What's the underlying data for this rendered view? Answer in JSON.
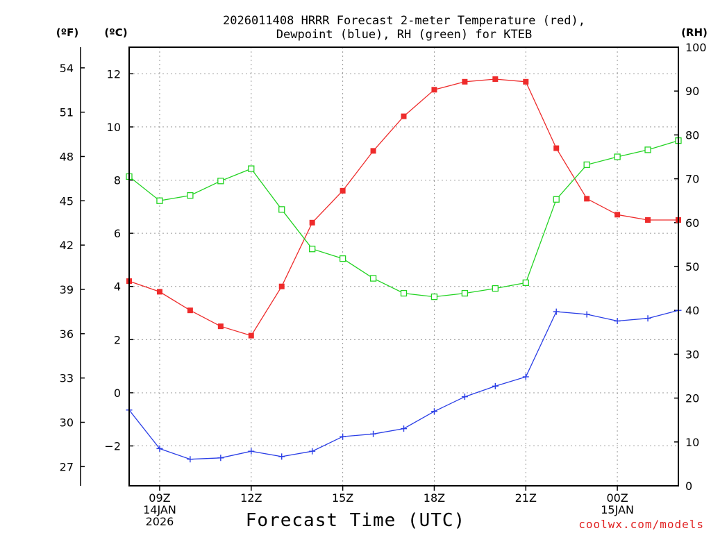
{
  "title": {
    "line1": "2026011408 HRRR Forecast 2-meter Temperature (red),",
    "line2": "Dewpoint (blue), RH (green) for KTEB"
  },
  "units": {
    "fahrenheit": "(ºF)",
    "celsius": "(ºC)",
    "rh": "(RH)"
  },
  "credit": "coolwx.com/models",
  "chart_data": {
    "type": "line",
    "title": "2026011408 HRRR Forecast 2-meter Temperature (red), Dewpoint (blue), RH (green) for KTEB",
    "xlabel": "Forecast Time (UTC)",
    "x_hours_utc": [
      8,
      9,
      10,
      11,
      12,
      13,
      14,
      15,
      16,
      17,
      18,
      19,
      20,
      21,
      22,
      23,
      24,
      25,
      26
    ],
    "x_ticks": [
      {
        "hour": 9,
        "lines": [
          "09Z",
          "14JAN",
          "2026"
        ]
      },
      {
        "hour": 12,
        "lines": [
          "12Z"
        ]
      },
      {
        "hour": 15,
        "lines": [
          "15Z"
        ]
      },
      {
        "hour": 18,
        "lines": [
          "18Z"
        ]
      },
      {
        "hour": 21,
        "lines": [
          "21Z"
        ]
      },
      {
        "hour": 24,
        "lines": [
          "00Z",
          "15JAN"
        ]
      }
    ],
    "xlim": [
      8,
      26
    ],
    "left_axis_celsius": {
      "label": "(ºC)",
      "ylim": [
        -3.5,
        13.0
      ],
      "ticks": [
        -2,
        0,
        2,
        4,
        6,
        8,
        10,
        12
      ],
      "tick_labels": [
        "−2",
        "0",
        "2",
        "4",
        "6",
        "8",
        "10",
        "12"
      ]
    },
    "fahrenheit_axis": {
      "label": "(ºF)",
      "ticks": [
        27,
        30,
        33,
        36,
        39,
        42,
        45,
        48,
        51,
        54
      ],
      "tick_labels": [
        "27",
        "30",
        "33",
        "36",
        "39",
        "42",
        "45",
        "48",
        "51",
        "54"
      ]
    },
    "right_axis_rh": {
      "label": "(RH)",
      "ylim": [
        0,
        100
      ],
      "ticks": [
        0,
        10,
        20,
        30,
        40,
        50,
        60,
        70,
        80,
        90,
        100
      ],
      "tick_labels": [
        "0",
        "10",
        "20",
        "30",
        "40",
        "50",
        "60",
        "70",
        "80",
        "90",
        "100"
      ]
    },
    "series": [
      {
        "name": "2-meter Temperature",
        "axis": "celsius",
        "color": "#ee2b2b",
        "marker": "filled-square",
        "values": [
          4.2,
          3.8,
          3.1,
          2.5,
          2.15,
          4.0,
          6.4,
          7.6,
          9.1,
          10.4,
          11.4,
          11.7,
          11.8,
          11.7,
          9.2,
          7.3,
          6.7,
          6.5,
          6.5
        ]
      },
      {
        "name": "Dewpoint",
        "axis": "celsius",
        "color": "#2a3ee6",
        "marker": "plus",
        "values": [
          -0.65,
          -2.1,
          -2.5,
          -2.45,
          -2.2,
          -2.4,
          -2.2,
          -1.65,
          -1.55,
          -1.35,
          -0.7,
          -0.15,
          0.25,
          0.6,
          3.05,
          2.95,
          2.7,
          2.8,
          3.1
        ]
      },
      {
        "name": "Relative Humidity",
        "axis": "rh",
        "color": "#22d322",
        "marker": "open-square",
        "values": [
          70.5,
          65.0,
          66.2,
          69.5,
          72.3,
          63.0,
          54.0,
          51.8,
          47.3,
          43.9,
          43.1,
          43.9,
          45.0,
          46.3,
          65.3,
          73.2,
          75.0,
          76.6,
          78.7
        ]
      }
    ]
  }
}
